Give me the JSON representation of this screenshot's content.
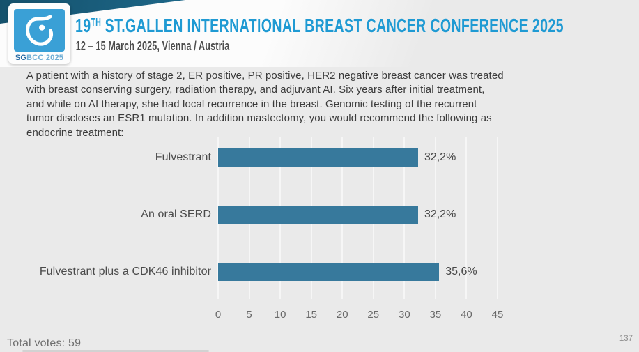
{
  "header": {
    "logo": {
      "sg": "SG",
      "rest": "BCC 2025"
    },
    "title_num": "19",
    "title_sup": "TH",
    "title_rest": " ST.GALLEN INTERNATIONAL BREAST CANCER CONFERENCE 2025",
    "subtitle": "12 – 15 March 2025, Vienna / Austria"
  },
  "question": "A patient with a history of stage 2, ER positive, PR positive, HER2 negative breast cancer was treated\nwith breast conserving surgery, radiation therapy, and adjuvant AI.  Six years after initial treatment,\nand while on AI therapy, she had local recurrence in the breast. Genomic testing of the recurrent\ntumor discloses an ESR1 mutation.  In addition mastectomy, you would recommend the following as\nendocrine treatment:",
  "chart_data": {
    "type": "bar",
    "orientation": "horizontal",
    "categories": [
      "Fulvestrant",
      "An oral SERD",
      "Fulvestrant plus a CDK46 inhibitor"
    ],
    "values": [
      32.2,
      32.2,
      35.6
    ],
    "value_labels": [
      "32,2%",
      "32,2%",
      "35,6%"
    ],
    "x_ticks": [
      0,
      5,
      10,
      15,
      20,
      25,
      30,
      35,
      40,
      45
    ],
    "xlim": [
      0,
      45
    ],
    "grid": true,
    "legend": false,
    "bar_color": "#37799c"
  },
  "footer": {
    "total_votes": "Total votes: 59",
    "page_number": "137"
  },
  "colors": {
    "title_blue": "#1f9ad3",
    "logo_blue": "#3aa0d6",
    "dark_wedge": "#1b5f7e",
    "bar_blue": "#37799c",
    "background": "#eaeaea"
  }
}
